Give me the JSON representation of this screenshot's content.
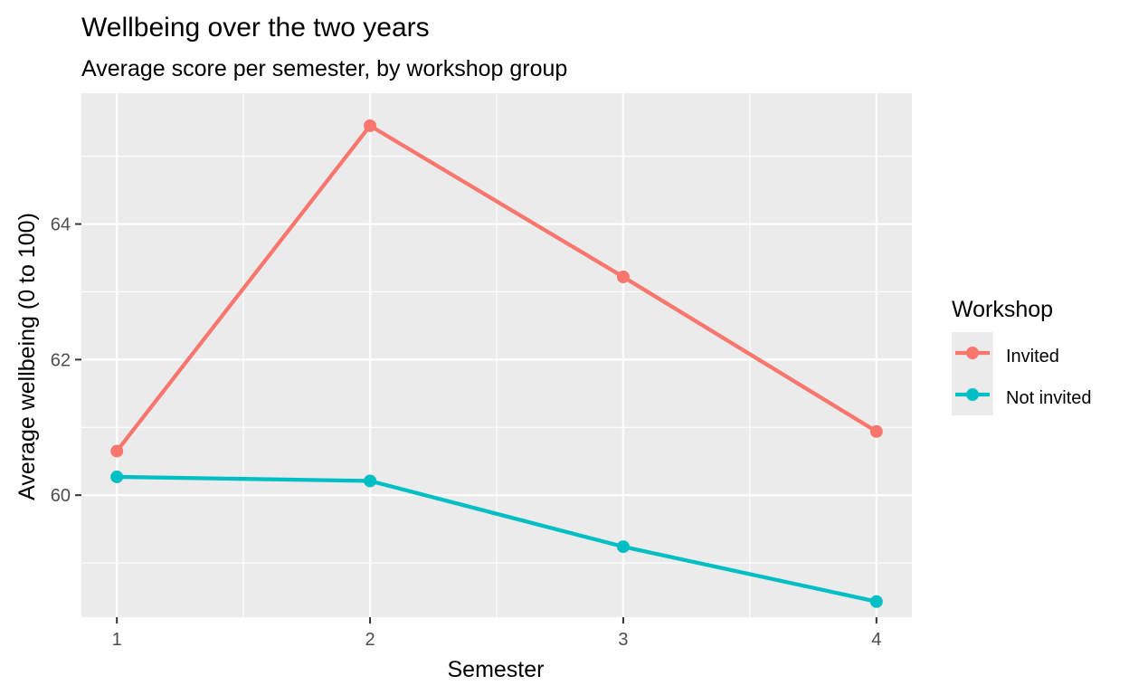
{
  "chart_data": {
    "type": "line",
    "title": "Wellbeing over the two years",
    "subtitle": "Average score per semester, by workshop group",
    "xlabel": "Semester",
    "ylabel": "Average wellbeing (0 to 100)",
    "x": [
      1,
      2,
      3,
      4
    ],
    "x_ticks": [
      "1",
      "2",
      "3",
      "4"
    ],
    "y_ticks": [
      "60",
      "62",
      "64"
    ],
    "xlim": [
      0.86,
      4.14
    ],
    "ylim": [
      58.2,
      65.93
    ],
    "grid": true,
    "legend": {
      "title": "Workshop",
      "position": "right"
    },
    "series": [
      {
        "name": "Invited",
        "color": "#F8766D",
        "values": [
          60.65,
          65.45,
          63.22,
          60.94
        ]
      },
      {
        "name": "Not invited",
        "color": "#00BFC4",
        "values": [
          60.27,
          60.21,
          59.24,
          58.43
        ]
      }
    ]
  },
  "colors": {
    "panel_background": "#EBEBEB",
    "grid_major": "#FFFFFF",
    "tick_text": "#4D4D4D"
  }
}
